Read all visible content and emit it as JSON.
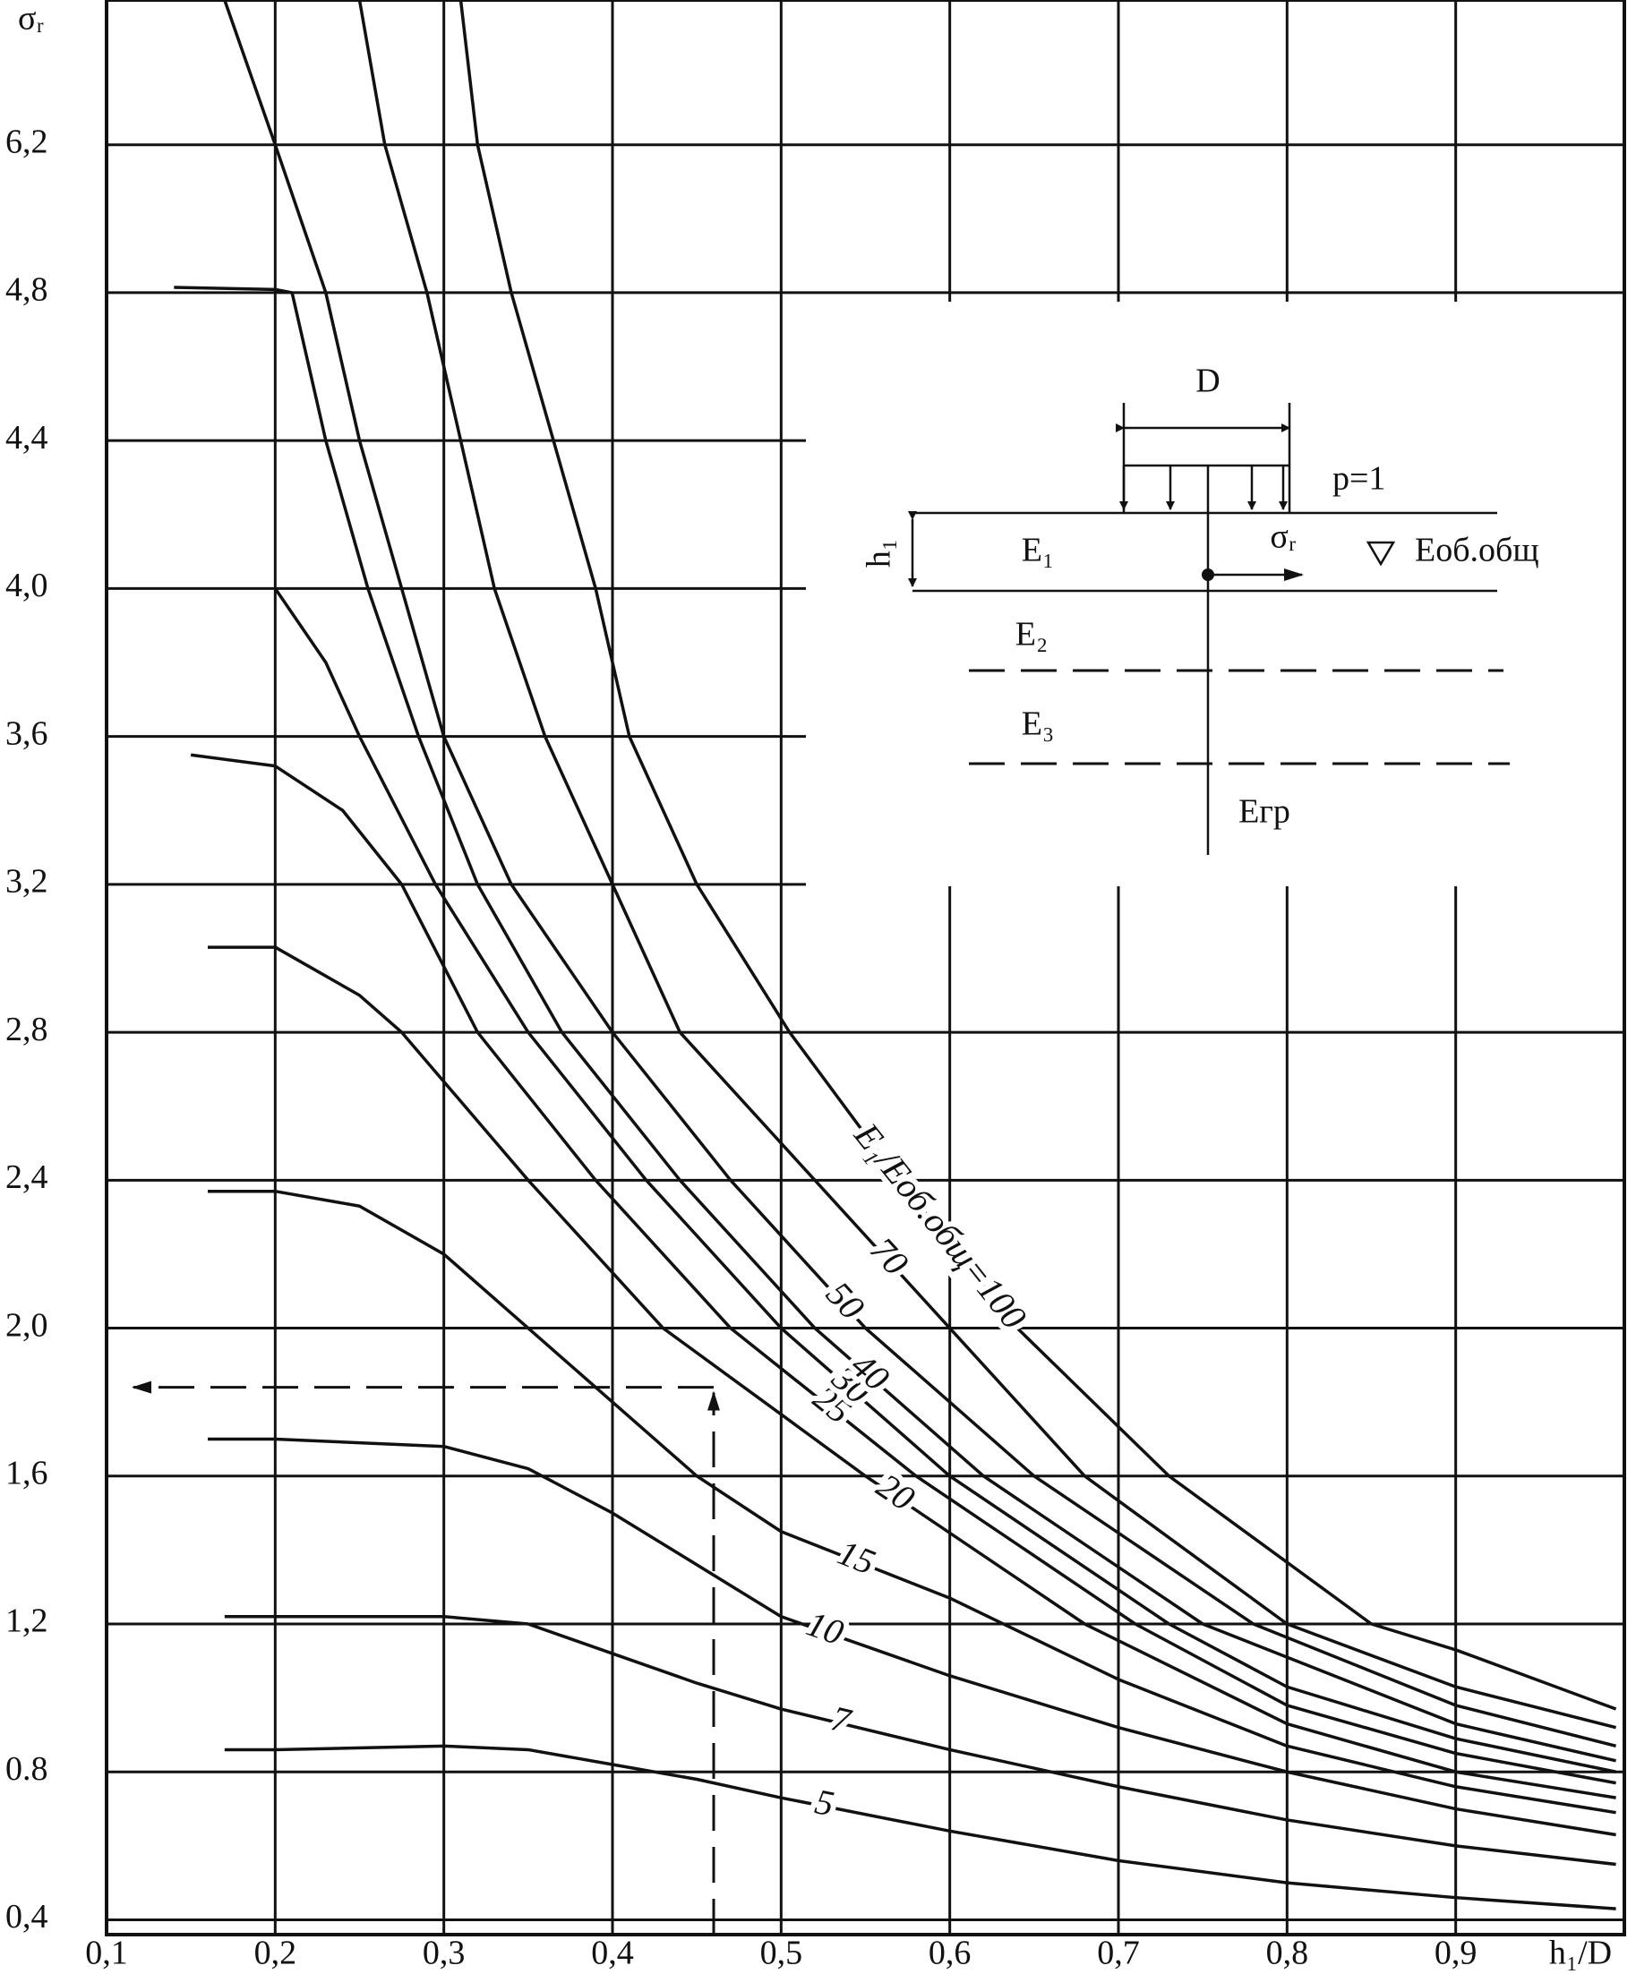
{
  "chart_data": {
    "type": "line",
    "x_label": "h₁/D",
    "y_label": "σᵣ",
    "xlim": [
      0.1,
      1.0
    ],
    "ylim": [
      0.36,
      7.57
    ],
    "xticks": [
      {
        "value": 0.1,
        "label": "0,1"
      },
      {
        "value": 0.2,
        "label": "0,2"
      },
      {
        "value": 0.3,
        "label": "0,3"
      },
      {
        "value": 0.4,
        "label": "0,4"
      },
      {
        "value": 0.5,
        "label": "0,5"
      },
      {
        "value": 0.6,
        "label": "0,6"
      },
      {
        "value": 0.7,
        "label": "0,7"
      },
      {
        "value": 0.8,
        "label": "0,8"
      },
      {
        "value": 0.9,
        "label": "0,9"
      }
    ],
    "yticks": [
      {
        "value": 0.4,
        "label": "0,4"
      },
      0.8,
      {
        "value": 1.2,
        "label": "1,2"
      },
      {
        "value": 1.6,
        "label": "1,6"
      },
      {
        "value": 2.0,
        "label": "2,0"
      },
      {
        "value": 2.4,
        "label": "2,4"
      },
      {
        "value": 2.8,
        "label": "2,8"
      },
      {
        "value": 3.2,
        "label": "3,2"
      },
      {
        "value": 3.6,
        "label": "3,6"
      },
      {
        "value": 4.0,
        "label": "4,0"
      },
      {
        "value": 4.4,
        "label": "4,4"
      },
      {
        "value": 4.8,
        "label": "4,8"
      },
      {
        "value": 6.2,
        "label": "6,2"
      }
    ],
    "grid": true,
    "color": "#111111",
    "series": [
      {
        "name": "5",
        "x": [
          0.17,
          0.2,
          0.3,
          0.35,
          0.4,
          0.45,
          0.5,
          0.6,
          0.7,
          0.8,
          0.9,
          0.995
        ],
        "values": [
          0.86,
          0.86,
          0.87,
          0.86,
          0.82,
          0.78,
          0.73,
          0.64,
          0.56,
          0.5,
          0.46,
          0.43
        ]
      },
      {
        "name": "7",
        "x": [
          0.17,
          0.2,
          0.3,
          0.35,
          0.4,
          0.45,
          0.5,
          0.6,
          0.7,
          0.8,
          0.9,
          0.995
        ],
        "values": [
          1.22,
          1.22,
          1.22,
          1.2,
          1.12,
          1.04,
          0.97,
          0.86,
          0.76,
          0.67,
          0.6,
          0.55
        ]
      },
      {
        "name": "10",
        "x": [
          0.16,
          0.2,
          0.3,
          0.35,
          0.4,
          0.45,
          0.5,
          0.6,
          0.7,
          0.8,
          0.9,
          0.995
        ],
        "values": [
          1.7,
          1.7,
          1.68,
          1.62,
          1.5,
          1.36,
          1.22,
          1.06,
          0.92,
          0.8,
          0.7,
          0.63
        ]
      },
      {
        "name": "15",
        "x": [
          0.16,
          0.2,
          0.25,
          0.3,
          0.35,
          0.45,
          0.5,
          0.6,
          0.7,
          0.8,
          0.9,
          0.995
        ],
        "values": [
          2.37,
          2.37,
          2.33,
          2.2,
          2.0,
          1.6,
          1.45,
          1.27,
          1.05,
          0.87,
          0.76,
          0.69
        ]
      },
      {
        "name": "20",
        "x": [
          0.16,
          0.2,
          0.25,
          0.275,
          0.35,
          0.43,
          0.55,
          0.68,
          0.8,
          0.9,
          0.995
        ],
        "values": [
          3.03,
          3.03,
          2.9,
          2.8,
          2.4,
          2.0,
          1.6,
          1.2,
          0.93,
          0.8,
          0.73
        ]
      },
      {
        "name": "25",
        "x": [
          0.15,
          0.2,
          0.24,
          0.275,
          0.32,
          0.39,
          0.47,
          0.58,
          0.71,
          0.8,
          0.9,
          0.995
        ],
        "values": [
          3.55,
          3.52,
          3.4,
          3.2,
          2.8,
          2.4,
          2.0,
          1.6,
          1.2,
          0.98,
          0.85,
          0.77
        ]
      },
      {
        "name": "30",
        "x": [
          0.2,
          0.23,
          0.25,
          0.295,
          0.35,
          0.42,
          0.5,
          0.6,
          0.73,
          0.8,
          0.9,
          0.995
        ],
        "values": [
          4.0,
          3.8,
          3.6,
          3.2,
          2.8,
          2.4,
          2.0,
          1.6,
          1.2,
          1.03,
          0.89,
          0.8
        ]
      },
      {
        "name": "40",
        "x": [
          0.14,
          0.2,
          0.21,
          0.23,
          0.255,
          0.285,
          0.32,
          0.37,
          0.44,
          0.52,
          0.62,
          0.75,
          0.9,
          0.995
        ],
        "values": [
          4.85,
          4.83,
          4.8,
          4.4,
          4.0,
          3.6,
          3.2,
          2.8,
          2.4,
          2.0,
          1.6,
          1.2,
          0.93,
          0.83
        ]
      },
      {
        "name": "50",
        "x": [
          0.17,
          0.2,
          0.23,
          0.25,
          0.275,
          0.3,
          0.34,
          0.4,
          0.47,
          0.55,
          0.65,
          0.78,
          0.9,
          0.995
        ],
        "values": [
          7.57,
          6.2,
          4.8,
          4.4,
          4.0,
          3.6,
          3.2,
          2.8,
          2.4,
          2.0,
          1.6,
          1.2,
          0.98,
          0.87
        ]
      },
      {
        "name": "70",
        "x": [
          0.25,
          0.265,
          0.29,
          0.31,
          0.33,
          0.36,
          0.4,
          0.44,
          0.52,
          0.6,
          0.68,
          0.8,
          0.9,
          0.995
        ],
        "values": [
          7.57,
          6.2,
          4.8,
          4.4,
          4.0,
          3.6,
          3.2,
          2.8,
          2.4,
          2.0,
          1.6,
          1.2,
          1.03,
          0.92
        ]
      },
      {
        "name": "E₁/Eоб.общ=100",
        "x": [
          0.31,
          0.32,
          0.34,
          0.365,
          0.39,
          0.41,
          0.45,
          0.505,
          0.57,
          0.64,
          0.73,
          0.85,
          0.9,
          0.995
        ],
        "values": [
          7.57,
          6.2,
          4.8,
          4.4,
          4.0,
          3.6,
          3.2,
          2.8,
          2.4,
          2.0,
          1.6,
          1.2,
          1.13,
          0.97
        ]
      }
    ],
    "example": {
      "x": 0.46,
      "y": 1.84
    },
    "inset": {
      "width": "D",
      "load": "p=1",
      "thickness": "h₁",
      "layer1": "E₁",
      "stress": "σᵣ",
      "base_modulus": "Eоб.общ",
      "layer2": "E₂",
      "layer3": "E₃",
      "subgrade": "Eгр"
    }
  }
}
